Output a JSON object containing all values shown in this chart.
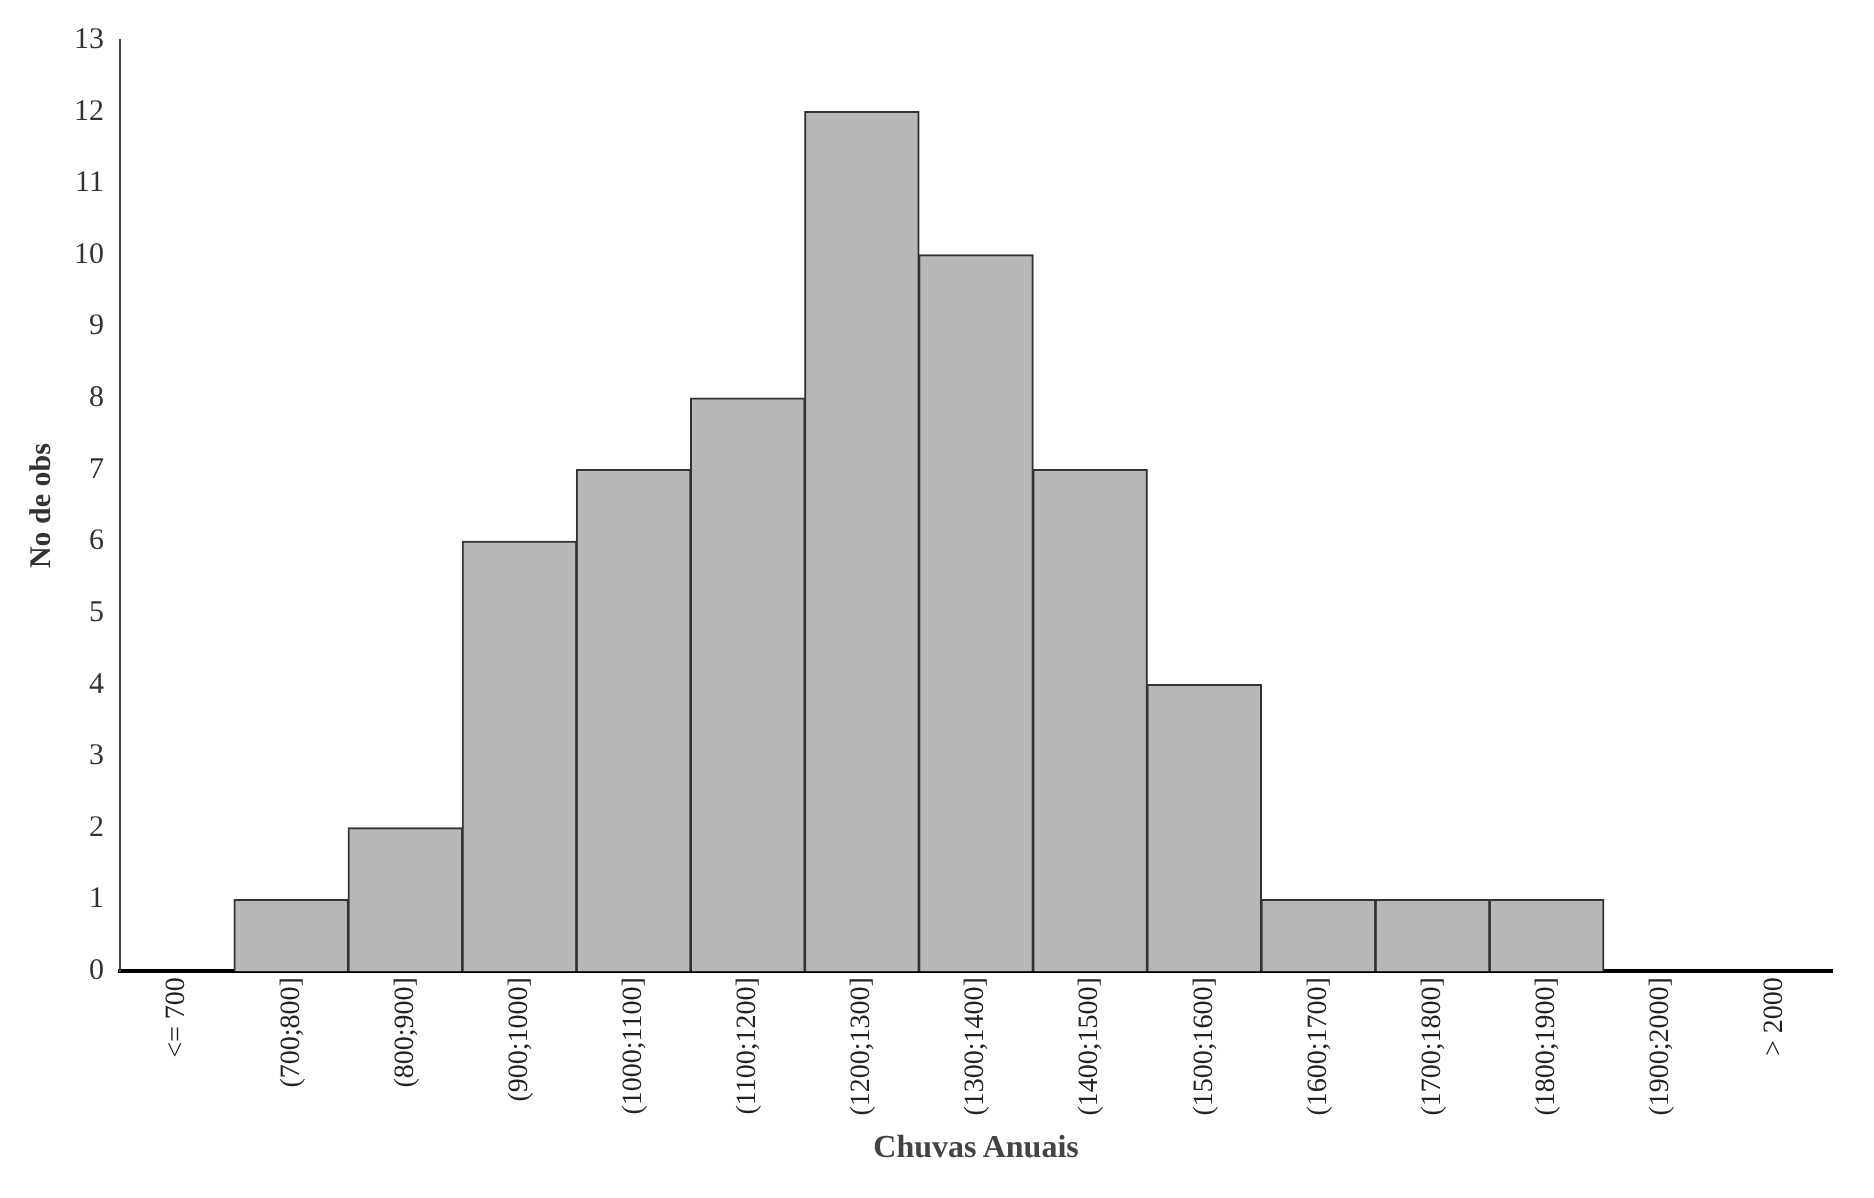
{
  "chart_data": {
    "type": "bar",
    "xlabel": "Chuvas Anuais",
    "ylabel": "No de obs",
    "categories": [
      "<= 700",
      "(700;800]",
      "(800;900]",
      "(900;1000]",
      "(1000;1100]",
      "(1100;1200]",
      "(1200;1300]",
      "(1300;1400]",
      "(1400;1500]",
      "(1500;1600]",
      "(1600;1700]",
      "(1700;1800]",
      "(1800;1900]",
      "(1900;2000]",
      "> 2000"
    ],
    "values": [
      0,
      1,
      2,
      6,
      7,
      8,
      12,
      10,
      7,
      4,
      1,
      1,
      1,
      0,
      0
    ],
    "color": "#b8b8b8",
    "ylim": [
      0,
      13
    ],
    "yticks": [
      0,
      1,
      2,
      3,
      4,
      5,
      6,
      7,
      8,
      9,
      10,
      11,
      12,
      13
    ],
    "grid": false,
    "legend": false
  }
}
